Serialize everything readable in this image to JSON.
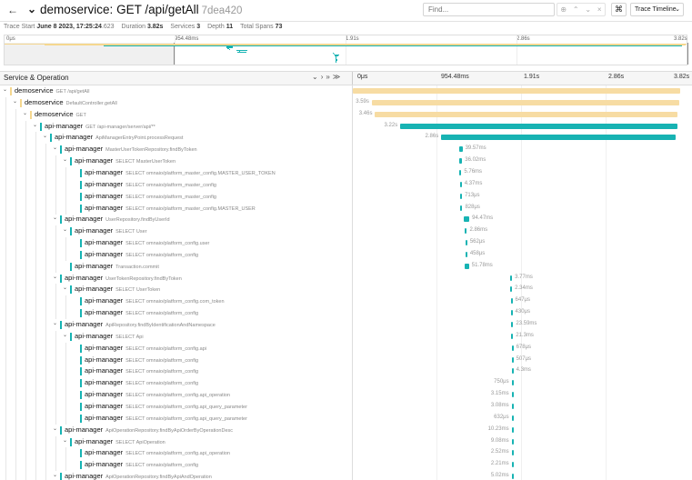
{
  "header": {
    "back_icon": "arrow-left-icon",
    "collapse_icon": "chevron-down-icon",
    "service": "demoservice:",
    "operation": "GET /api/getAll",
    "trace_id": "7dea420",
    "find_placeholder": "Find...",
    "keyboard_icon": "⌘",
    "view_mode": "Trace Timeline"
  },
  "meta": {
    "trace_start_label": "Trace Start",
    "trace_start": "June 8 2023, 17:25:24",
    "trace_start_ms": ".623",
    "duration_label": "Duration",
    "duration": "3.82s",
    "services_label": "Services",
    "services": "3",
    "depth_label": "Depth",
    "depth": "11",
    "total_spans_label": "Total Spans",
    "total_spans": "73"
  },
  "minimap": {
    "ticks": [
      "0μs",
      "954.48ms",
      "1.91s",
      "2.86s",
      "3.82s"
    ]
  },
  "columns": {
    "service_operation": "Service & Operation",
    "ticks": [
      "0μs",
      "954.48ms",
      "1.91s",
      "2.86s",
      "3.82s"
    ]
  },
  "colors": {
    "demoservice": "#f5d78f",
    "api-manager": "#17b3b3",
    "span_light": "#f7dca3"
  },
  "rows": [
    {
      "depth": 0,
      "tog": "v",
      "service": "demoservice",
      "op": "GET /api/getAll",
      "color": "demoservice",
      "start": 0.0,
      "dur": 1.0,
      "label": ""
    },
    {
      "depth": 1,
      "tog": "v",
      "service": "demoservice",
      "op": "DefaultController.getAll",
      "color": "demoservice",
      "start": 0.058,
      "dur": 0.94,
      "label": "3.59s"
    },
    {
      "depth": 2,
      "tog": "v",
      "service": "demoservice",
      "op": "GET",
      "color": "demoservice",
      "start": 0.068,
      "dur": 0.925,
      "label": "3.46s"
    },
    {
      "depth": 3,
      "tog": "v",
      "service": "api-manager",
      "op": "GET /api-manager/server/api/**",
      "color": "api-manager",
      "start": 0.145,
      "dur": 0.848,
      "label": "3.22s"
    },
    {
      "depth": 4,
      "tog": "v",
      "service": "api-manager",
      "op": "ApiManagerEntryPoint.processRequest",
      "color": "api-manager",
      "start": 0.27,
      "dur": 0.715,
      "label": "2.86s"
    },
    {
      "depth": 5,
      "tog": "v",
      "service": "api-manager",
      "op": "MasterUserTokenRepository.findByToken",
      "color": "api-manager",
      "start": 0.325,
      "dur": 0.01,
      "label": "39.57ms"
    },
    {
      "depth": 6,
      "tog": "v",
      "service": "api-manager",
      "op": "SELECT MasterUserToken",
      "color": "api-manager",
      "start": 0.325,
      "dur": 0.009,
      "label": "36.02ms"
    },
    {
      "depth": 7,
      "tog": "",
      "service": "api-manager",
      "op": "SELECT omnaio/platform_master_config.MASTER_USER_TOKEN",
      "color": "api-manager",
      "start": 0.326,
      "dur": 0.002,
      "label": "5.76ms"
    },
    {
      "depth": 7,
      "tog": "",
      "service": "api-manager",
      "op": "SELECT omnaio/platform_master_config",
      "color": "api-manager",
      "start": 0.327,
      "dur": 0.0012,
      "label": "4.37ms"
    },
    {
      "depth": 7,
      "tog": "",
      "service": "api-manager",
      "op": "SELECT omnaio/platform_master_config",
      "color": "api-manager",
      "start": 0.328,
      "dur": 0.0005,
      "label": "713μs"
    },
    {
      "depth": 7,
      "tog": "",
      "service": "api-manager",
      "op": "SELECT omnaio/platform_master_config.MASTER_USER",
      "color": "api-manager",
      "start": 0.329,
      "dur": 0.0004,
      "label": "828μs"
    },
    {
      "depth": 5,
      "tog": "v",
      "service": "api-manager",
      "op": "UserRepository.findByUserId",
      "color": "api-manager",
      "start": 0.34,
      "dur": 0.016,
      "label": "94.47ms"
    },
    {
      "depth": 6,
      "tog": "v",
      "service": "api-manager",
      "op": "SELECT User",
      "color": "api-manager",
      "start": 0.343,
      "dur": 0.0008,
      "label": "2.86ms"
    },
    {
      "depth": 7,
      "tog": "",
      "service": "api-manager",
      "op": "SELECT omnaio/platform_config.user",
      "color": "api-manager",
      "start": 0.344,
      "dur": 0.0004,
      "label": "562μs"
    },
    {
      "depth": 7,
      "tog": "",
      "service": "api-manager",
      "op": "SELECT omnaio/platform_config",
      "color": "api-manager",
      "start": 0.344,
      "dur": 0.0004,
      "label": "458μs"
    },
    {
      "depth": 6,
      "tog": "",
      "service": "api-manager",
      "op": "Transaction.commit",
      "color": "api-manager",
      "start": 0.341,
      "dur": 0.014,
      "label": "51.78ms"
    },
    {
      "depth": 5,
      "tog": "v",
      "service": "api-manager",
      "op": "UserTokenRepository.findByToken",
      "color": "api-manager",
      "start": 0.481,
      "dur": 0.0015,
      "label": "3.77ms"
    },
    {
      "depth": 6,
      "tog": "v",
      "service": "api-manager",
      "op": "SELECT UserToken",
      "color": "api-manager",
      "start": 0.481,
      "dur": 0.001,
      "label": "2.34ms"
    },
    {
      "depth": 7,
      "tog": "",
      "service": "api-manager",
      "op": "SELECT omnaio/platform_config.com_token",
      "color": "api-manager",
      "start": 0.482,
      "dur": 0.0004,
      "label": "647μs"
    },
    {
      "depth": 7,
      "tog": "",
      "service": "api-manager",
      "op": "SELECT omnaio/platform_config",
      "color": "api-manager",
      "start": 0.482,
      "dur": 0.0004,
      "label": "430μs"
    },
    {
      "depth": 5,
      "tog": "v",
      "service": "api-manager",
      "op": "ApiRepository.findByIdentificationAndNamespace",
      "color": "api-manager",
      "start": 0.484,
      "dur": 0.006,
      "label": "23.59ms"
    },
    {
      "depth": 6,
      "tog": "v",
      "service": "api-manager",
      "op": "SELECT Api",
      "color": "api-manager",
      "start": 0.484,
      "dur": 0.005,
      "label": "21.3ms"
    },
    {
      "depth": 7,
      "tog": "",
      "service": "api-manager",
      "op": "SELECT omnaio/platform_config.api",
      "color": "api-manager",
      "start": 0.485,
      "dur": 0.0004,
      "label": "678μs"
    },
    {
      "depth": 7,
      "tog": "",
      "service": "api-manager",
      "op": "SELECT omnaio/platform_config",
      "color": "api-manager",
      "start": 0.485,
      "dur": 0.0004,
      "label": "507μs"
    },
    {
      "depth": 7,
      "tog": "",
      "service": "api-manager",
      "op": "SELECT omnaio/platform_config",
      "color": "api-manager",
      "start": 0.485,
      "dur": 0.0011,
      "label": "4.3ms"
    },
    {
      "depth": 7,
      "tog": "",
      "service": "api-manager",
      "op": "SELECT omnaio/platform_config",
      "color": "api-manager",
      "start": 0.485,
      "dur": 0.0004,
      "label": "750μs",
      "left_label": true
    },
    {
      "depth": 7,
      "tog": "",
      "service": "api-manager",
      "op": "SELECT omnaio/platform_config.api_operation",
      "color": "api-manager",
      "start": 0.485,
      "dur": 0.0006,
      "label": "3.15ms",
      "left_label": true
    },
    {
      "depth": 7,
      "tog": "",
      "service": "api-manager",
      "op": "SELECT omnaio/platform_config.api_query_parameter",
      "color": "api-manager",
      "start": 0.485,
      "dur": 0.0006,
      "label": "3.08ms",
      "left_label": true
    },
    {
      "depth": 7,
      "tog": "",
      "service": "api-manager",
      "op": "SELECT omnaio/platform_config.api_query_parameter",
      "color": "api-manager",
      "start": 0.485,
      "dur": 0.0004,
      "label": "632μs",
      "left_label": true
    },
    {
      "depth": 5,
      "tog": "v",
      "service": "api-manager",
      "op": "ApiOperationRepository.findByApiOrderByOperationDesc",
      "color": "api-manager",
      "start": 0.485,
      "dur": 0.003,
      "label": "10.23ms",
      "left_label": true
    },
    {
      "depth": 6,
      "tog": "v",
      "service": "api-manager",
      "op": "SELECT ApiOperation",
      "color": "api-manager",
      "start": 0.485,
      "dur": 0.0025,
      "label": "9.08ms",
      "left_label": true
    },
    {
      "depth": 7,
      "tog": "",
      "service": "api-manager",
      "op": "SELECT omnaio/platform_config.api_operation",
      "color": "api-manager",
      "start": 0.485,
      "dur": 0.0005,
      "label": "2.52ms",
      "left_label": true
    },
    {
      "depth": 7,
      "tog": "",
      "service": "api-manager",
      "op": "SELECT omnaio/platform_config",
      "color": "api-manager",
      "start": 0.485,
      "dur": 0.0004,
      "label": "2.21ms",
      "left_label": true
    },
    {
      "depth": 5,
      "tog": "v",
      "service": "api-manager",
      "op": "ApiOperationRepository.findByApiAndOperation",
      "color": "api-manager",
      "start": 0.485,
      "dur": 0.0015,
      "label": "5.02ms",
      "left_label": true
    }
  ]
}
